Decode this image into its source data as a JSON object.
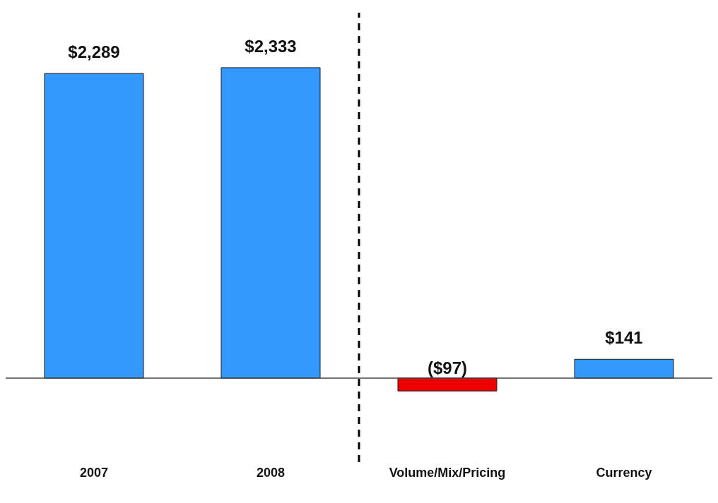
{
  "chart_data": {
    "type": "bar",
    "categories": [
      "2007",
      "2008",
      "Volume/Mix/Pricing",
      "Currency"
    ],
    "values": [
      2289,
      2333,
      -97,
      141
    ],
    "colors": [
      "#3399ff",
      "#3399ff",
      "#ee0000",
      "#3399ff"
    ],
    "value_labels": [
      "$2,289",
      "$2,333",
      "($97)",
      "$141"
    ]
  }
}
